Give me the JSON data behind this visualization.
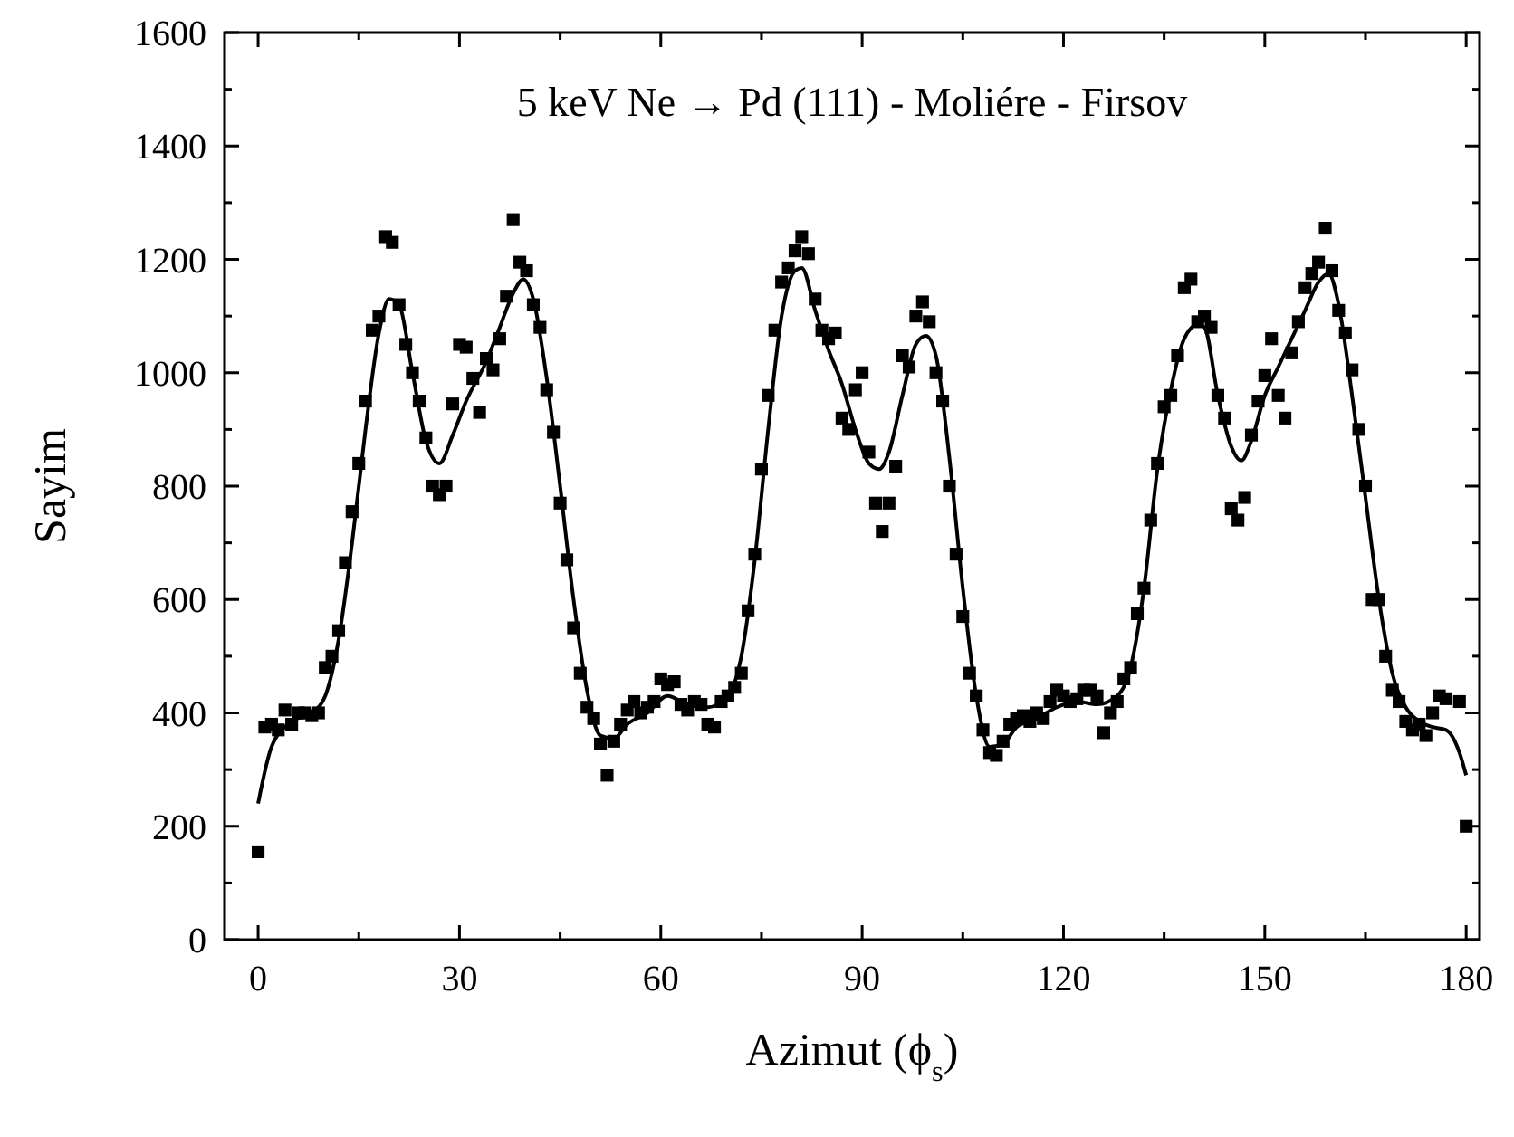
{
  "chart_data": {
    "type": "scatter",
    "title": "5 keV Ne → Pd (111) - Moliére - Firsov",
    "xlabel": "Azimut (ϕ$_{s}$)",
    "ylabel": "Sayim",
    "xlim": [
      -5,
      182
    ],
    "ylim": [
      0,
      1600
    ],
    "xticks": [
      0,
      {
        "value": 15,
        "label": null
      },
      30,
      {
        "value": 45,
        "label": null
      },
      60,
      {
        "value": 75,
        "label": null
      },
      90,
      {
        "value": 105,
        "label": null
      },
      120,
      {
        "value": 135,
        "label": null
      },
      150,
      {
        "value": 165,
        "label": null
      },
      180
    ],
    "yticks": [
      0,
      {
        "value": 100,
        "label": null
      },
      200,
      {
        "value": 300,
        "label": null
      },
      400,
      {
        "value": 500,
        "label": null
      },
      600,
      {
        "value": 700,
        "label": null
      },
      800,
      {
        "value": 900,
        "label": null
      },
      1000,
      {
        "value": 1100,
        "label": null
      },
      1200,
      {
        "value": 1300,
        "label": null
      },
      1400,
      {
        "value": 1500,
        "label": null
      },
      1600
    ],
    "grid": false,
    "series": [
      {
        "marker": "square",
        "color": "#000000",
        "x": [
          0,
          1,
          2,
          3,
          4,
          5,
          6,
          7,
          8,
          9,
          10,
          11,
          12,
          13,
          14,
          15,
          16,
          17,
          18,
          19,
          20,
          21,
          22,
          23,
          24,
          25,
          26,
          27,
          28,
          29,
          30,
          31,
          32,
          33,
          34,
          35,
          36,
          37,
          38,
          39,
          40,
          41,
          42,
          43,
          44,
          45,
          46,
          47,
          48,
          49,
          50,
          51,
          52,
          53,
          54,
          55,
          56,
          57,
          58,
          59,
          60,
          61,
          62,
          63,
          64,
          65,
          66,
          67,
          68,
          69,
          70,
          71,
          72,
          73,
          74,
          75,
          76,
          77,
          78,
          79,
          80,
          81,
          82,
          83,
          84,
          85,
          86,
          87,
          88,
          89,
          90,
          91,
          92,
          93,
          94,
          95,
          96,
          97,
          98,
          99,
          100,
          101,
          102,
          103,
          104,
          105,
          106,
          107,
          108,
          109,
          110,
          111,
          112,
          113,
          114,
          115,
          116,
          117,
          118,
          119,
          120,
          121,
          122,
          123,
          124,
          125,
          126,
          127,
          128,
          129,
          130,
          131,
          132,
          133,
          134,
          135,
          136,
          137,
          138,
          139,
          140,
          141,
          142,
          143,
          144,
          145,
          146,
          147,
          148,
          149,
          150,
          151,
          152,
          153,
          154,
          155,
          156,
          157,
          158,
          159,
          160,
          161,
          162,
          163,
          164,
          165,
          166,
          167,
          168,
          169,
          170,
          171,
          172,
          173,
          174,
          175,
          176,
          177,
          179,
          180
        ],
        "values": [
          155,
          375,
          380,
          370,
          405,
          380,
          400,
          400,
          395,
          400,
          480,
          500,
          545,
          665,
          755,
          840,
          950,
          1075,
          1100,
          1240,
          1230,
          1120,
          1050,
          1000,
          950,
          885,
          800,
          785,
          800,
          945,
          1050,
          1045,
          990,
          930,
          1025,
          1005,
          1060,
          1135,
          1270,
          1195,
          1180,
          1120,
          1080,
          970,
          895,
          770,
          670,
          550,
          470,
          410,
          390,
          345,
          290,
          350,
          380,
          405,
          420,
          400,
          410,
          420,
          460,
          450,
          455,
          415,
          405,
          420,
          415,
          380,
          375,
          420,
          430,
          445,
          470,
          580,
          680,
          830,
          960,
          1075,
          1160,
          1185,
          1215,
          1240,
          1210,
          1130,
          1075,
          1060,
          1070,
          920,
          900,
          970,
          1000,
          860,
          770,
          720,
          770,
          835,
          1030,
          1010,
          1100,
          1125,
          1090,
          1000,
          950,
          800,
          680,
          570,
          470,
          430,
          370,
          330,
          325,
          350,
          380,
          390,
          395,
          385,
          400,
          390,
          420,
          440,
          430,
          420,
          425,
          440,
          440,
          430,
          365,
          400,
          420,
          460,
          480,
          575,
          620,
          740,
          840,
          940,
          960,
          1030,
          1150,
          1165,
          1090,
          1100,
          1080,
          960,
          920,
          760,
          740,
          780,
          890,
          950,
          995,
          1060,
          960,
          920,
          1035,
          1090,
          1150,
          1175,
          1195,
          1255,
          1180,
          1110,
          1070,
          1005,
          900,
          800,
          600,
          600,
          500,
          440,
          420,
          385,
          370,
          380,
          360,
          400,
          430,
          425,
          420,
          200
        ]
      },
      {
        "type": "line",
        "marker": "none",
        "line_style": "solid",
        "color": "#000000",
        "x": [
          0,
          2,
          5,
          8,
          10,
          12,
          14,
          16,
          18,
          19.5,
          21,
          23,
          25,
          27,
          29,
          31,
          34,
          36,
          38,
          39.5,
          41,
          43,
          45,
          47,
          49,
          51,
          53,
          55,
          58,
          61,
          64,
          67,
          70,
          72,
          74,
          76,
          78,
          80,
          81,
          83,
          85,
          87,
          89,
          91,
          92.5,
          94,
          96,
          98,
          99.5,
          101,
          103,
          105,
          107,
          109,
          111,
          113,
          116,
          119,
          122,
          125,
          128,
          130,
          132,
          134,
          136,
          138,
          140,
          141,
          143,
          145,
          146.5,
          148,
          150,
          152,
          154,
          156,
          158,
          159.5,
          161,
          163,
          165,
          167,
          169,
          171,
          173,
          175,
          177,
          179,
          180
        ],
        "values": [
          240,
          340,
          385,
          400,
          430,
          530,
          700,
          900,
          1070,
          1130,
          1120,
          1000,
          880,
          840,
          890,
          950,
          1020,
          1080,
          1140,
          1165,
          1130,
          990,
          800,
          600,
          440,
          360,
          355,
          380,
          400,
          430,
          415,
          410,
          430,
          500,
          670,
          900,
          1100,
          1180,
          1185,
          1110,
          1040,
          980,
          900,
          840,
          830,
          860,
          960,
          1050,
          1065,
          1030,
          850,
          620,
          430,
          340,
          345,
          375,
          390,
          410,
          420,
          415,
          430,
          480,
          620,
          830,
          970,
          1060,
          1085,
          1080,
          960,
          870,
          845,
          880,
          960,
          1010,
          1060,
          1110,
          1160,
          1175,
          1120,
          960,
          780,
          600,
          470,
          410,
          385,
          375,
          370,
          330,
          290
        ]
      }
    ]
  }
}
